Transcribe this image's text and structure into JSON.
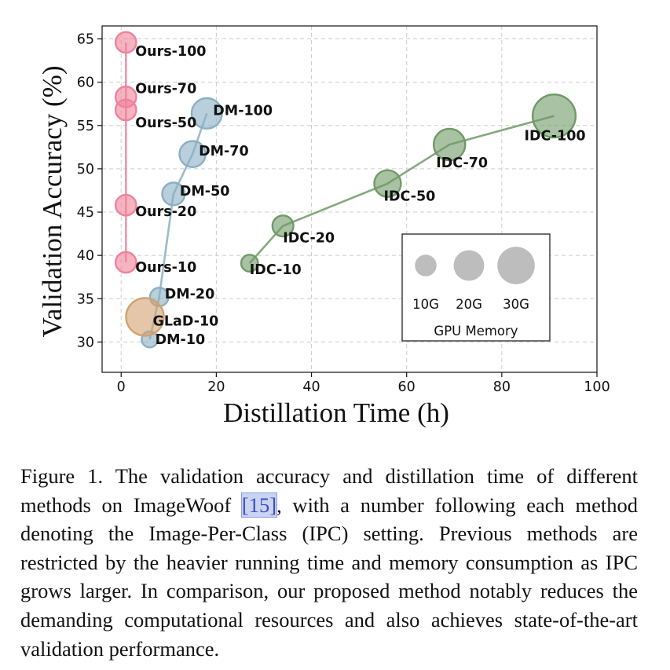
{
  "chart_data": {
    "type": "scatter",
    "xlabel": "Distillation Time (h)",
    "ylabel": "Validation Accuracy (%)",
    "xlim": [
      -4,
      100
    ],
    "ylim": [
      26.5,
      66.5
    ],
    "xticks": [
      0,
      20,
      40,
      60,
      80,
      100
    ],
    "yticks": [
      30,
      35,
      40,
      45,
      50,
      55,
      60,
      65
    ],
    "grid": true,
    "series": [
      {
        "color": "#f0829a",
        "line": true,
        "points": [
          {
            "label": "Ours-10",
            "x": 1,
            "y": 39.2,
            "mem": 3.0
          },
          {
            "label": "Ours-20",
            "x": 1,
            "y": 45.8,
            "mem": 3.0
          },
          {
            "label": "Ours-50",
            "x": 1,
            "y": 56.8,
            "mem": 3.0
          },
          {
            "label": "Ours-70",
            "x": 1,
            "y": 58.3,
            "mem": 3.0
          },
          {
            "label": "Ours-100",
            "x": 1,
            "y": 64.6,
            "mem": 3.0
          }
        ]
      },
      {
        "color": "#8aafc3",
        "line": true,
        "points": [
          {
            "label": "DM-10",
            "x": 6,
            "y": 30.3,
            "mem": 1.8
          },
          {
            "label": "DM-20",
            "x": 8,
            "y": 35.2,
            "mem": 2.4
          },
          {
            "label": "DM-50",
            "x": 11,
            "y": 47.1,
            "mem": 3.6
          },
          {
            "label": "DM-70",
            "x": 15,
            "y": 51.7,
            "mem": 4.8
          },
          {
            "label": "DM-100",
            "x": 18,
            "y": 56.4,
            "mem": 6.5
          }
        ]
      },
      {
        "color": "#6f9a66",
        "line": true,
        "points": [
          {
            "label": "IDC-10",
            "x": 27,
            "y": 39.1,
            "mem": 2.0
          },
          {
            "label": "IDC-20",
            "x": 34,
            "y": 43.4,
            "mem": 3.1
          },
          {
            "label": "IDC-50",
            "x": 56,
            "y": 48.3,
            "mem": 5.0
          },
          {
            "label": "IDC-70",
            "x": 69,
            "y": 52.8,
            "mem": 7.0
          },
          {
            "label": "IDC-100",
            "x": 91,
            "y": 56.1,
            "mem": 13.0
          }
        ]
      },
      {
        "color": "#d4a06e",
        "line": false,
        "points": [
          {
            "label": "GLaD-10",
            "x": 5,
            "y": 32.9,
            "mem": 10.0
          }
        ]
      }
    ],
    "legend": {
      "title": "GPU Memory",
      "placement": "lower-right",
      "entries": [
        {
          "label": "10G",
          "mem": 10
        },
        {
          "label": "20G",
          "mem": 20
        },
        {
          "label": "30G",
          "mem": 30
        }
      ]
    }
  },
  "caption": {
    "prefix": "Figure 1.  The validation accuracy and distillation time of different methods on ImageWoof ",
    "citation": "[15]",
    "suffix": ", with a number following each method denoting the Image-Per-Class (IPC) setting.  Previous methods are restricted by the heavier running time and memory consumption as IPC grows larger.  In comparison, our proposed method notably reduces the demanding computational resources and also achieves state-of-the-art validation performance."
  }
}
